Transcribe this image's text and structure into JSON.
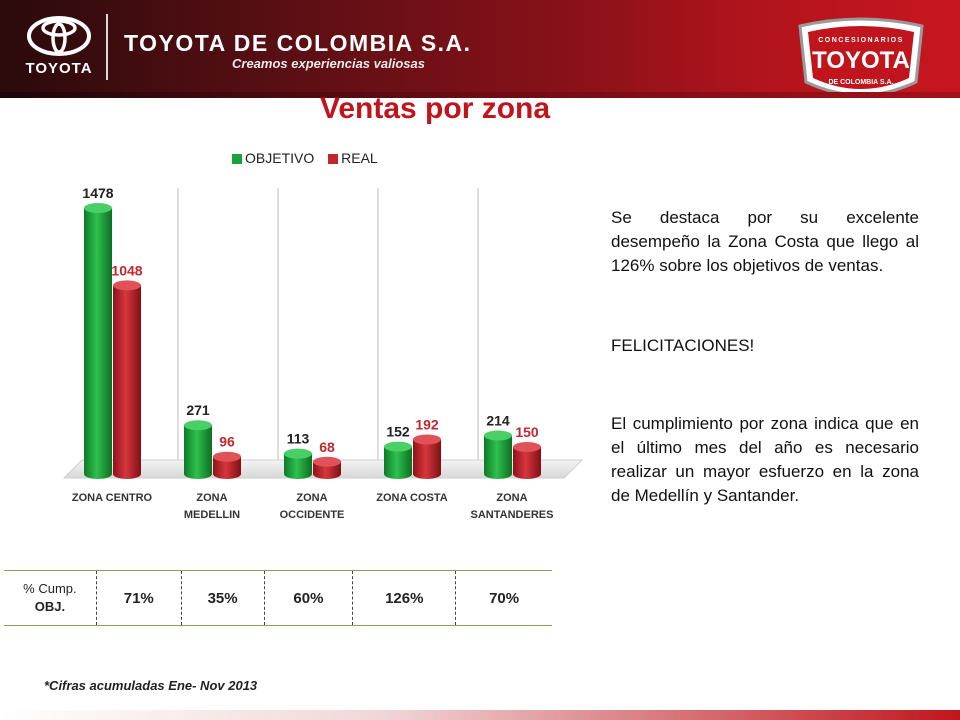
{
  "header": {
    "logo_word": "TOYOTA",
    "company": "TOYOTA DE COLOMBIA S.A.",
    "slogan": "Creamos experiencias valiosas",
    "badge_top": "CONCESIONARIOS",
    "badge_main": "TOYOTA",
    "badge_bottom": "DE COLOMBIA S.A."
  },
  "title": "Ventas por zona",
  "legend": {
    "objetivo": "OBJETIVO",
    "real": "REAL"
  },
  "colors": {
    "objetivo": "#1aa23a",
    "real": "#c0282d",
    "real_label": "#c0282d",
    "title": "#c0151d"
  },
  "chart_data": {
    "type": "bar",
    "categories": [
      "ZONA CENTRO",
      "ZONA MEDELLIN",
      "ZONA OCCIDENTE",
      "ZONA COSTA",
      "ZONA SANTANDERES"
    ],
    "series": [
      {
        "name": "OBJETIVO",
        "values": [
          1478,
          271,
          113,
          152,
          214
        ]
      },
      {
        "name": "REAL",
        "values": [
          1048,
          96,
          68,
          192,
          150
        ]
      }
    ],
    "title": "Ventas por zona",
    "xlabel": "",
    "ylabel": "",
    "ylim": [
      0,
      1478
    ],
    "grid": "vertical separators",
    "legend_position": "top"
  },
  "category_labels": [
    [
      "ZONA CENTRO"
    ],
    [
      "ZONA",
      "MEDELLIN"
    ],
    [
      "ZONA",
      "OCCIDENTE"
    ],
    [
      "ZONA COSTA"
    ],
    [
      "ZONA",
      "SANTANDERES"
    ]
  ],
  "notes": {
    "p1": "Se destaca por su excelente desempeño la Zona Costa que llego al 126% sobre los objetivos de ventas.",
    "p2": "FELICITACIONES!",
    "p3": "El cumplimiento por zona indica que en el último mes del año es necesario realizar un mayor esfuerzo en la zona de Medellín y Santander."
  },
  "table": {
    "header_line1": "% Cump.",
    "header_line2": "OBJ.",
    "values": [
      "71%",
      "35%",
      "60%",
      "126%",
      "70%"
    ]
  },
  "footnote": "*Cifras acumuladas Ene- Nov  2013"
}
